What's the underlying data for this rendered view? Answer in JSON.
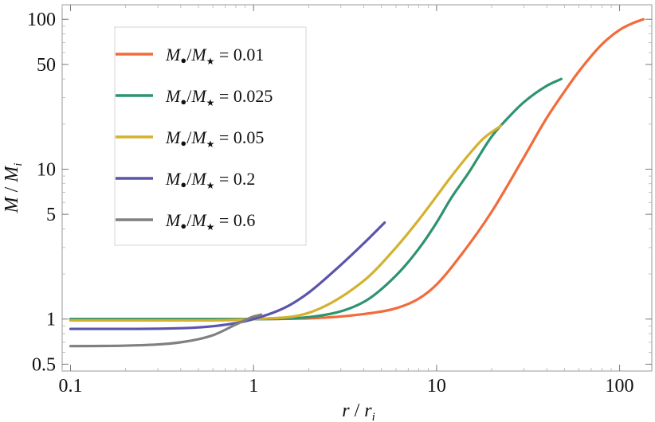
{
  "chart_data": {
    "type": "line",
    "xscale": "log",
    "yscale": "log",
    "xlabel": "r / r_i",
    "ylabel": "M / M_i",
    "xlim": [
      0.09,
      150
    ],
    "ylim": [
      0.45,
      125
    ],
    "x_ticks": [
      {
        "value": 0.1,
        "label": "0.1"
      },
      {
        "value": 1,
        "label": "1"
      },
      {
        "value": 10,
        "label": "10"
      },
      {
        "value": 100,
        "label": "100"
      }
    ],
    "y_ticks": [
      {
        "value": 0.5,
        "label": "0.5"
      },
      {
        "value": 1,
        "label": "1"
      },
      {
        "value": 5,
        "label": "5"
      },
      {
        "value": 10,
        "label": "10"
      },
      {
        "value": 50,
        "label": "50"
      },
      {
        "value": 100,
        "label": "100"
      }
    ],
    "legend_position": "top-left",
    "series": [
      {
        "name": "M•/M⋆ = 0.01",
        "legend_suffix": "0.01",
        "color": "#F26B3A",
        "x": [
          0.1,
          0.5,
          1,
          2,
          4,
          6,
          8,
          10,
          14,
          20,
          30,
          40,
          50,
          60,
          80,
          100,
          120,
          135
        ],
        "y": [
          1.0,
          1.0,
          1.0,
          1.01,
          1.08,
          1.18,
          1.37,
          1.7,
          2.8,
          5.2,
          12,
          22,
          33,
          45,
          68,
          85,
          95,
          100
        ]
      },
      {
        "name": "M•/M⋆ = 0.025",
        "legend_suffix": "0.025",
        "color": "#2E9470",
        "x": [
          0.1,
          0.5,
          1,
          2,
          4,
          6,
          8,
          10,
          12,
          15,
          20,
          25,
          30,
          40,
          48
        ],
        "y": [
          1.0,
          1.0,
          1.0,
          1.03,
          1.3,
          1.95,
          2.95,
          4.4,
          6.4,
          9.5,
          16.5,
          22.5,
          28,
          36,
          40
        ]
      },
      {
        "name": "M•/M⋆ = 0.05",
        "legend_suffix": "0.05",
        "color": "#D4B12E",
        "x": [
          0.1,
          0.5,
          1,
          2,
          4,
          6,
          8,
          10,
          12,
          15,
          18,
          22.5
        ],
        "y": [
          0.98,
          0.98,
          1.0,
          1.1,
          1.8,
          3.0,
          4.6,
          6.6,
          8.9,
          12.5,
          16,
          19.5
        ]
      },
      {
        "name": "M•/M⋆ = 0.2",
        "legend_suffix": "0.2",
        "color": "#5A55AA",
        "x": [
          0.1,
          0.2,
          0.5,
          0.8,
          1,
          1.5,
          2,
          3,
          4,
          5.2
        ],
        "y": [
          0.86,
          0.86,
          0.88,
          0.94,
          1.0,
          1.2,
          1.5,
          2.3,
          3.2,
          4.4
        ]
      },
      {
        "name": "M•/M⋆ = 0.6",
        "legend_suffix": "0.6",
        "color": "#808080",
        "x": [
          0.1,
          0.2,
          0.4,
          0.6,
          0.8,
          1.0,
          1.1
        ],
        "y": [
          0.66,
          0.665,
          0.7,
          0.78,
          0.92,
          1.04,
          1.07
        ]
      }
    ]
  }
}
